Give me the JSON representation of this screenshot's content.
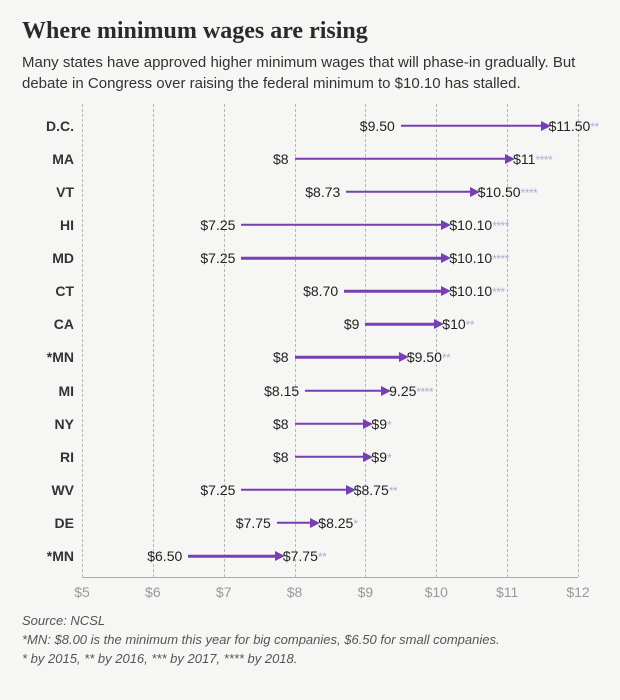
{
  "title": "Where minimum wages are rising",
  "subtitle": "Many states have approved higher minimum wages that will phase-in gradually. But debate in Congress over raising the federal minimum to $10.10 has stalled.",
  "chart": {
    "type": "arrow-range",
    "x_min": 5,
    "x_max": 12,
    "x_prefix": "$",
    "x_ticks": [
      5,
      6,
      7,
      8,
      9,
      10,
      11,
      12
    ],
    "arrow_color": "#763fb2",
    "star_color": "#b9a6d6",
    "grid_color": "#b7b7b4",
    "axis_text_color": "#999999",
    "label_color": "#333333",
    "label_fontsize": 14,
    "row_height_pct": 7.0,
    "rows": [
      {
        "label": "D.C.",
        "start": 9.5,
        "end": 11.5,
        "start_label": "$9.50",
        "end_label": "$11.50",
        "stars": 2
      },
      {
        "label": "MA",
        "start": 8.0,
        "end": 11.0,
        "start_label": "$8",
        "end_label": "$11",
        "stars": 4
      },
      {
        "label": "VT",
        "start": 8.73,
        "end": 10.5,
        "start_label": "$8.73",
        "end_label": "$10.50",
        "stars": 4
      },
      {
        "label": "HI",
        "start": 7.25,
        "end": 10.1,
        "start_label": "$7.25",
        "end_label": "$10.10",
        "stars": 4
      },
      {
        "label": "MD",
        "start": 7.25,
        "end": 10.1,
        "start_label": "$7.25",
        "end_label": "$10.10",
        "stars": 4
      },
      {
        "label": "CT",
        "start": 8.7,
        "end": 10.1,
        "start_label": "$8.70",
        "end_label": "$10.10",
        "stars": 3
      },
      {
        "label": "CA",
        "start": 9.0,
        "end": 10.0,
        "start_label": "$9",
        "end_label": "$10",
        "stars": 2
      },
      {
        "label": "*MN",
        "start": 8.0,
        "end": 9.5,
        "start_label": "$8",
        "end_label": "$9.50",
        "stars": 2
      },
      {
        "label": "MI",
        "start": 8.15,
        "end": 9.25,
        "start_label": "$8.15",
        "end_label": "9.25",
        "stars": 4
      },
      {
        "label": "NY",
        "start": 8.0,
        "end": 9.0,
        "start_label": "$8",
        "end_label": "$9",
        "stars": 1
      },
      {
        "label": "RI",
        "start": 8.0,
        "end": 9.0,
        "start_label": "$8",
        "end_label": "$9",
        "stars": 1
      },
      {
        "label": "WV",
        "start": 7.25,
        "end": 8.75,
        "start_label": "$7.25",
        "end_label": "$8.75",
        "stars": 2
      },
      {
        "label": "DE",
        "start": 7.75,
        "end": 8.25,
        "start_label": "$7.75",
        "end_label": "$8.25",
        "stars": 1
      },
      {
        "label": "*MN",
        "start": 6.5,
        "end": 7.75,
        "start_label": "$6.50",
        "end_label": "$7.75",
        "stars": 2
      }
    ]
  },
  "footer": {
    "source": "Source: NCSL",
    "note_mn": "*MN: $8.00 is the minimum this year for big companies, $6.50 for small companies.",
    "note_stars": "* by 2015, ** by 2016, *** by 2017, **** by 2018."
  }
}
